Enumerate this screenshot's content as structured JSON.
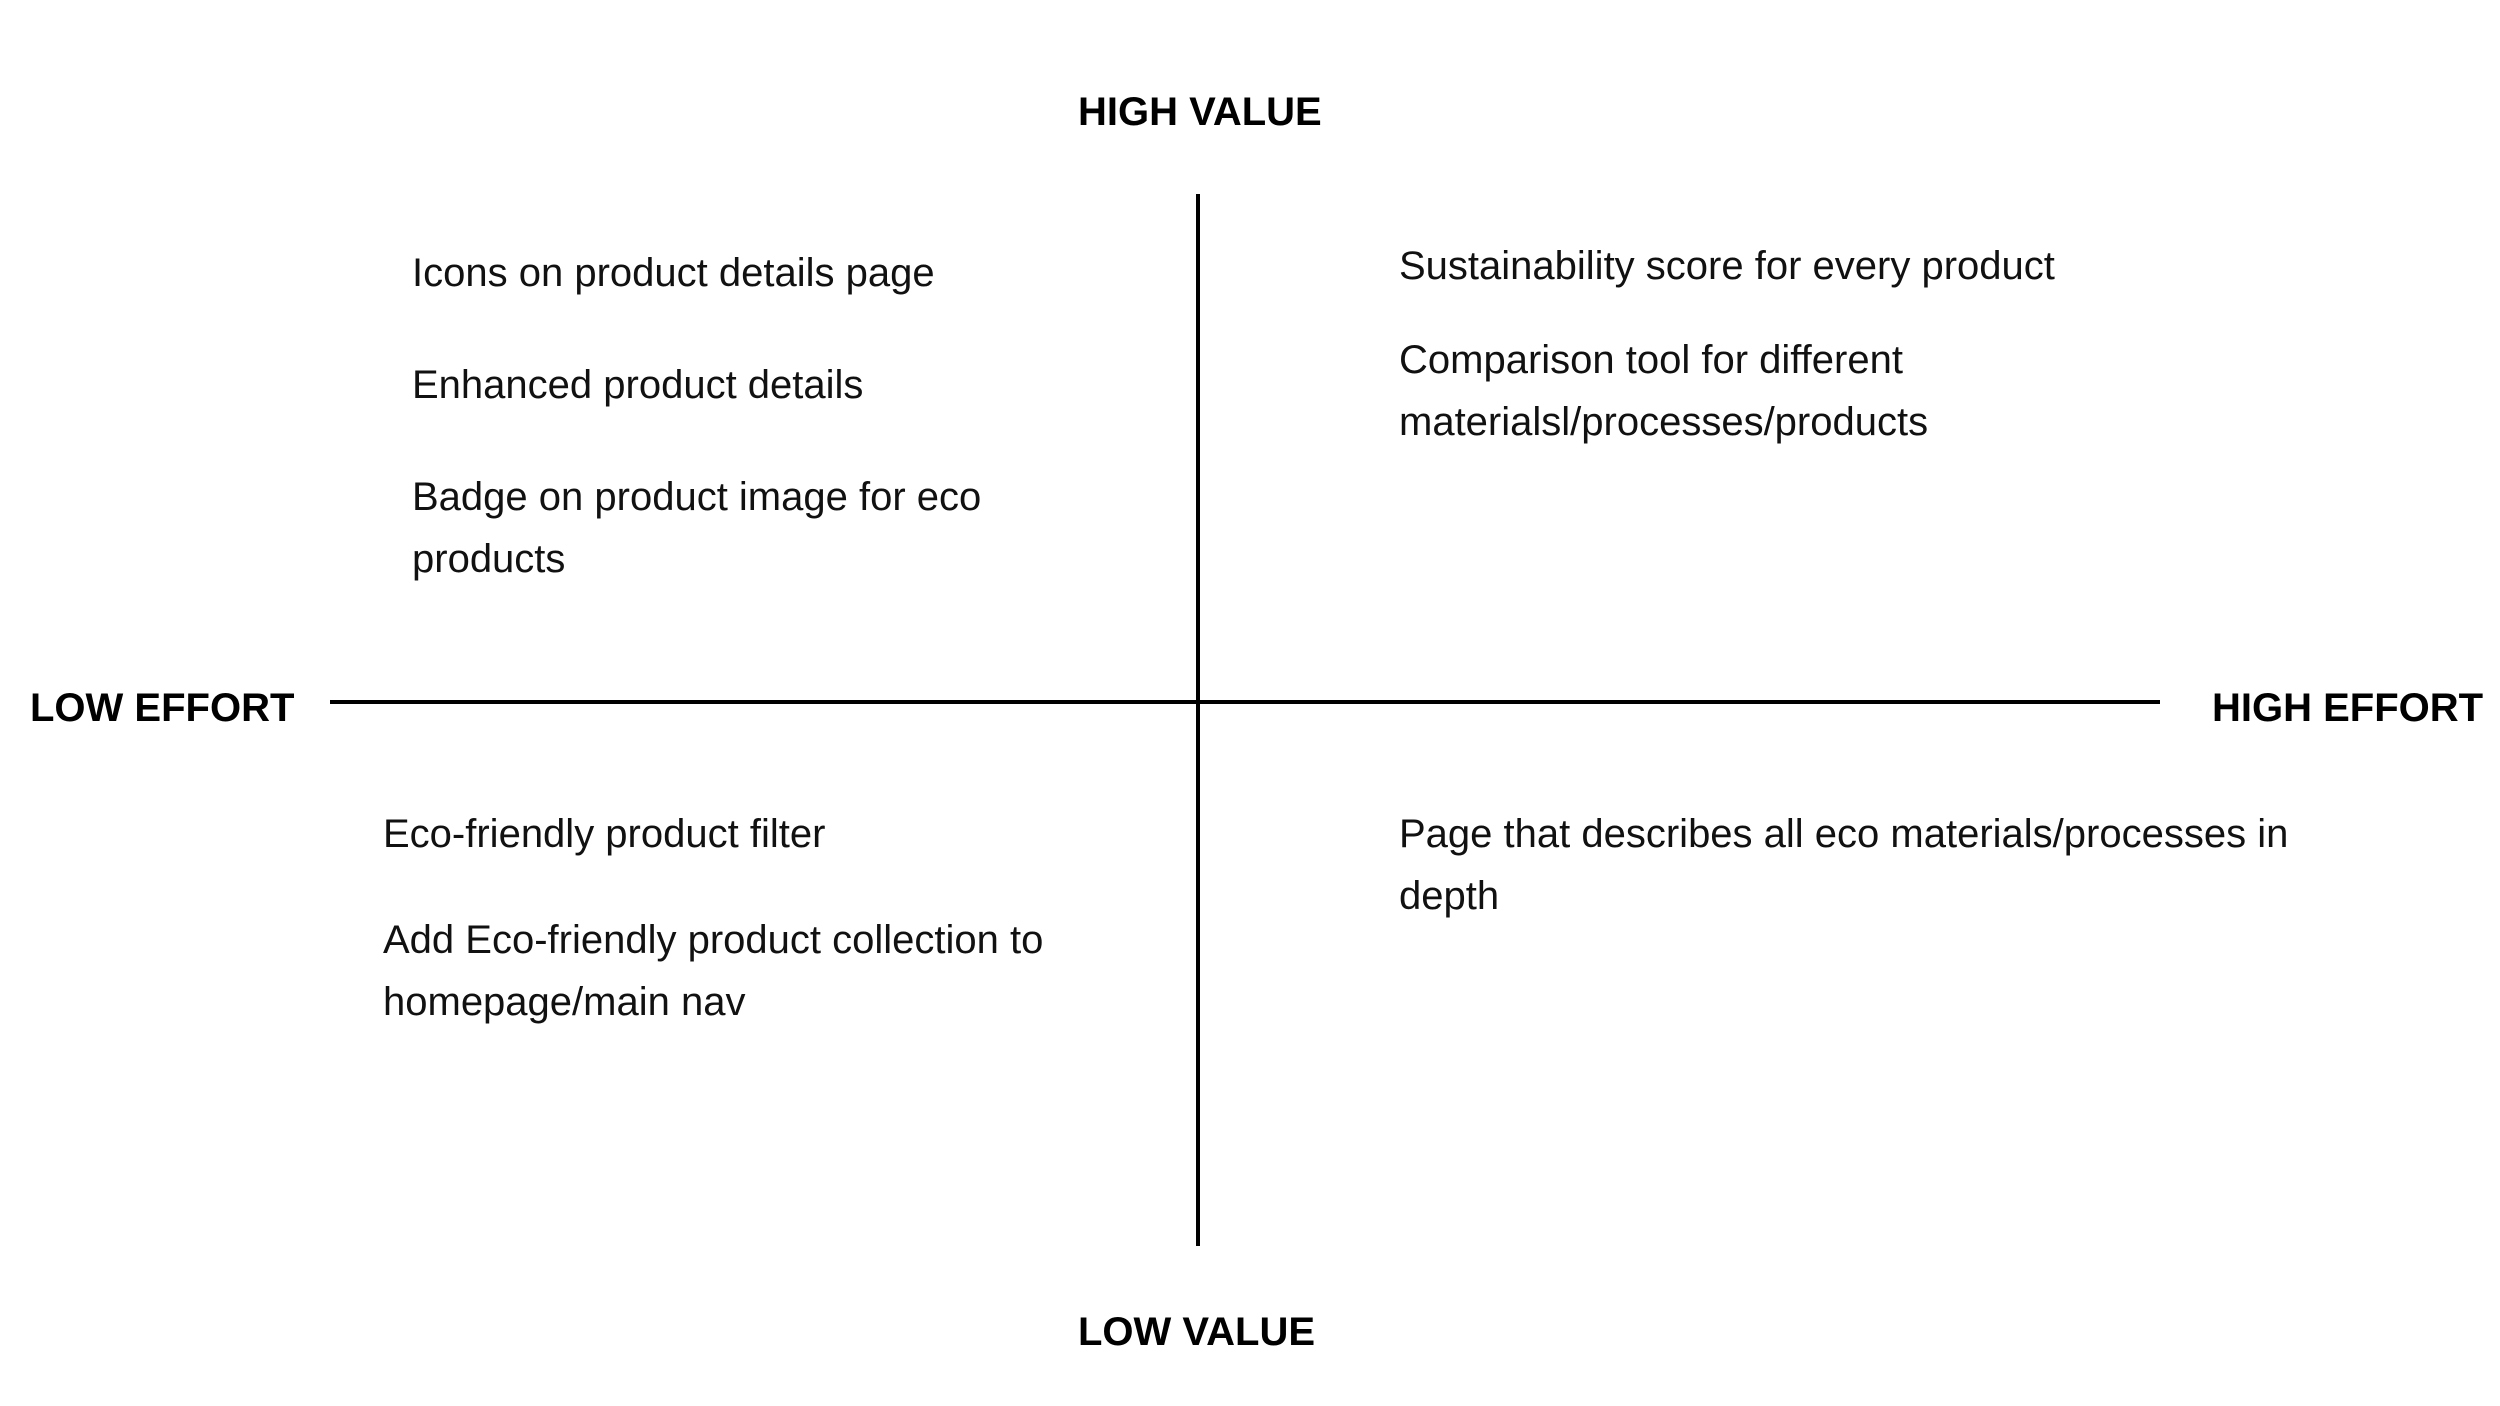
{
  "axes": {
    "top": "HIGH VALUE",
    "bottom": "LOW VALUE",
    "left": "LOW EFFORT",
    "right": "HIGH EFFORT"
  },
  "quadrants": {
    "top_left": {
      "items": [
        "Icons on product details page",
        "Enhanced product details",
        "Badge on product image for eco products"
      ]
    },
    "top_right": {
      "items": [
        "Sustainability score for every product",
        "Comparison tool for different materialsl/processes/products"
      ]
    },
    "bottom_left": {
      "items": [
        "Eco-friendly product filter",
        "Add Eco-friendly product collection to homepage/main nav"
      ]
    },
    "bottom_right": {
      "items": [
        "Page that describes all eco materials/processes in depth"
      ]
    }
  }
}
